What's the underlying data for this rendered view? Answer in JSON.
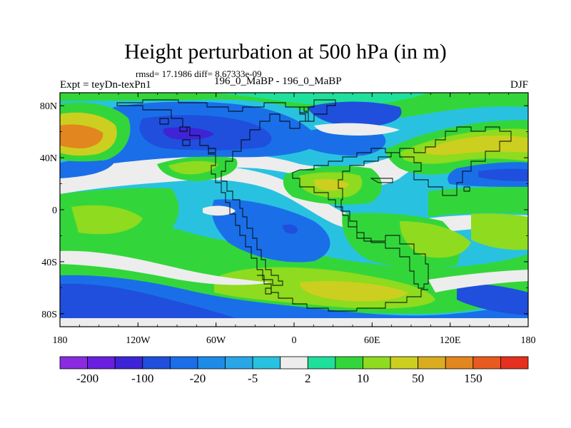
{
  "title": "Height perturbation at 500 hPa (in m)",
  "stats": "rmsd= 17.1986 diff= 8.67333e-09",
  "left_label": "Expt = teyDn-texPn1",
  "center_label": "196_0_MaBP - 196_0_MaBP",
  "right_label": "DJF",
  "lat_ticks": [
    {
      "value": 80,
      "label": "80N"
    },
    {
      "value": 40,
      "label": "40N"
    },
    {
      "value": 0,
      "label": "0"
    },
    {
      "value": -40,
      "label": "40S"
    },
    {
      "value": -80,
      "label": "80S"
    }
  ],
  "lon_ticks": [
    {
      "value": -180,
      "label": "180"
    },
    {
      "value": -120,
      "label": "120W"
    },
    {
      "value": -60,
      "label": "60W"
    },
    {
      "value": 0,
      "label": "0"
    },
    {
      "value": 60,
      "label": "60E"
    },
    {
      "value": 120,
      "label": "120E"
    },
    {
      "value": 180,
      "label": "180"
    }
  ],
  "colorbar": {
    "colors": [
      "#8a2be2",
      "#6a1fe0",
      "#3f24d6",
      "#1f4fdc",
      "#1a6fe8",
      "#1f8be8",
      "#2aa6e6",
      "#28c2e0",
      "#ededed",
      "#1fe09a",
      "#33d63a",
      "#8edb1f",
      "#cccf1f",
      "#d9ad1f",
      "#e2861f",
      "#e85a1f",
      "#e6301f"
    ],
    "labels": [
      {
        "after_box": 1,
        "text": "-200"
      },
      {
        "after_box": 3,
        "text": "-100"
      },
      {
        "after_box": 5,
        "text": "-20"
      },
      {
        "after_box": 7,
        "text": "-5"
      },
      {
        "after_box": 9,
        "text": "2"
      },
      {
        "after_box": 11,
        "text": "10"
      },
      {
        "after_box": 13,
        "text": "50"
      },
      {
        "after_box": 15,
        "text": "150"
      }
    ]
  },
  "map_colors": {
    "ocean_blue": "#1f4fdc",
    "mid_blue": "#1a6fe8",
    "light_blue": "#28c2e0",
    "neutral": "#ededed",
    "green": "#33d63a",
    "yellow_green": "#8edb1f",
    "yellow": "#cccf1f",
    "orange": "#e2861f",
    "deep_blue": "#3f24d6",
    "teal": "#1fe09a"
  }
}
